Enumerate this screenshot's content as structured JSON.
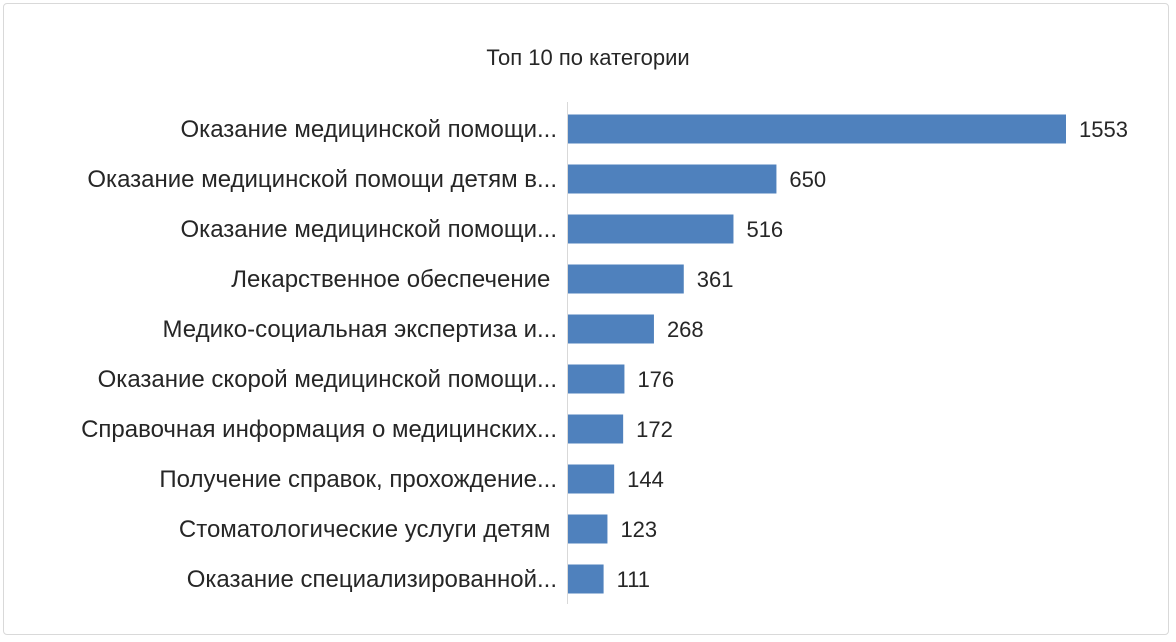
{
  "chart_data": {
    "type": "bar",
    "orientation": "horizontal",
    "title": "Топ 10 по категории",
    "categories": [
      "Оказание медицинской помощи...",
      "Оказание медицинской помощи детям в...",
      "Оказание медицинской помощи...",
      "Лекарственное обеспечение ",
      "Медико-социальная экспертиза и...",
      "Оказание скорой медицинской помощи...",
      "Справочная информация о медицинских...",
      "Получение справок, прохождение...",
      "Стоматологические услуги детям ",
      "Оказание специализированной..."
    ],
    "values": [
      1553,
      650,
      516,
      361,
      268,
      176,
      172,
      144,
      123,
      111
    ],
    "data_labels": true,
    "grid": false,
    "legend": "none",
    "bar_color": "#4f81bd"
  }
}
